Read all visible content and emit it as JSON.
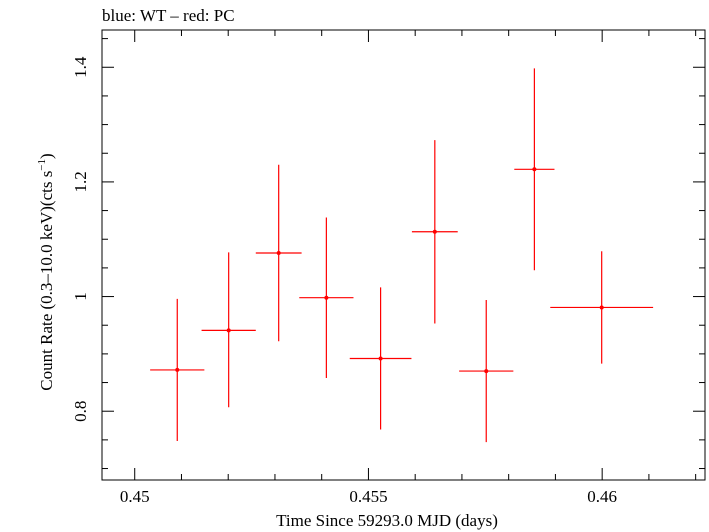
{
  "chart_data": {
    "type": "scatter",
    "title": "blue: WT – red: PC",
    "xlabel": "Time Since 59293.0 MJD (days)",
    "ylabel": "Count Rate (0.3–10.0 keV)(cts s",
    "ylabel_superscript": "−1",
    "ylabel_suffix": ")",
    "xlim": [
      0.4493,
      0.4622
    ],
    "ylim": [
      0.68,
      1.465
    ],
    "x_ticks": [
      {
        "value": 0.45,
        "label": "0.45"
      },
      {
        "value": 0.455,
        "label": "0.455"
      },
      {
        "value": 0.46,
        "label": "0.46"
      }
    ],
    "y_ticks": [
      {
        "value": 0.8,
        "label": "0.8"
      },
      {
        "value": 1.0,
        "label": "1"
      },
      {
        "value": 1.2,
        "label": "1.2"
      },
      {
        "value": 1.4,
        "label": "1.4"
      }
    ],
    "grid": false,
    "series": [
      {
        "color": "#ff0000",
        "points": [
          {
            "x": 0.45091,
            "xerr_lo": 0.00058,
            "xerr_hi": 0.00058,
            "y": 0.872,
            "yerr_lo": 0.124,
            "yerr_hi": 0.124
          },
          {
            "x": 0.45201,
            "xerr_lo": 0.00058,
            "xerr_hi": 0.00058,
            "y": 0.941,
            "yerr_lo": 0.134,
            "yerr_hi": 0.136
          },
          {
            "x": 0.45308,
            "xerr_lo": 0.00049,
            "xerr_hi": 0.00049,
            "y": 1.076,
            "yerr_lo": 0.154,
            "yerr_hi": 0.154
          },
          {
            "x": 0.4541,
            "xerr_lo": 0.00058,
            "xerr_hi": 0.00058,
            "y": 0.998,
            "yerr_lo": 0.14,
            "yerr_hi": 0.14
          },
          {
            "x": 0.45526,
            "xerr_lo": 0.00066,
            "xerr_hi": 0.00066,
            "y": 0.892,
            "yerr_lo": 0.124,
            "yerr_hi": 0.124
          },
          {
            "x": 0.45642,
            "xerr_lo": 0.00049,
            "xerr_hi": 0.00049,
            "y": 1.113,
            "yerr_lo": 0.16,
            "yerr_hi": 0.16
          },
          {
            "x": 0.45752,
            "xerr_lo": 0.00058,
            "xerr_hi": 0.00058,
            "y": 0.87,
            "yerr_lo": 0.124,
            "yerr_hi": 0.124
          },
          {
            "x": 0.45855,
            "xerr_lo": 0.00043,
            "xerr_hi": 0.00043,
            "y": 1.222,
            "yerr_lo": 0.176,
            "yerr_hi": 0.176
          },
          {
            "x": 0.45999,
            "xerr_lo": 0.0011,
            "xerr_hi": 0.0011,
            "y": 0.981,
            "yerr_lo": 0.098,
            "yerr_hi": 0.098
          }
        ]
      }
    ]
  }
}
